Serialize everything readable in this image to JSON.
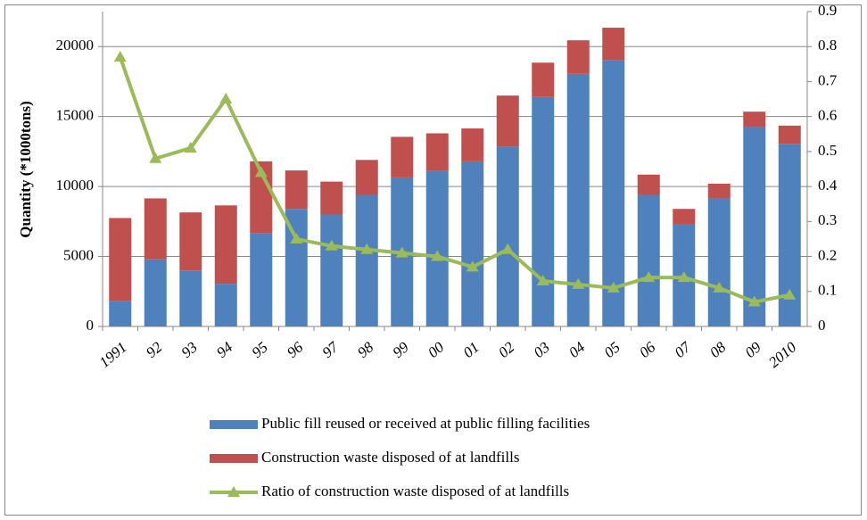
{
  "chart_data": {
    "type": "bar",
    "stacked": true,
    "categories": [
      "1991",
      "92",
      "93",
      "94",
      "95",
      "96",
      "97",
      "98",
      "99",
      "00",
      "01",
      "02",
      "03",
      "04",
      "05",
      "06",
      "07",
      "08",
      "09",
      "2010"
    ],
    "y_label": "Quantity (*1000tons)",
    "series": [
      {
        "name": "Public fill reused or received at public filling facilities",
        "color": "#4f81bd",
        "type": "bar",
        "values": [
          1800,
          4800,
          4000,
          3050,
          6650,
          8400,
          8000,
          9400,
          10650,
          11100,
          11800,
          12850,
          16400,
          18050,
          19050,
          9400,
          7300,
          9150,
          14250,
          13050
        ]
      },
      {
        "name": "Construction waste disposed of at landfills",
        "color": "#c0504d",
        "type": "bar",
        "values": [
          5950,
          4350,
          4150,
          5600,
          5150,
          2750,
          2350,
          2500,
          2900,
          2700,
          2350,
          3650,
          2450,
          2400,
          2300,
          1450,
          1100,
          1050,
          1100,
          1300
        ]
      },
      {
        "name": "Ratio of construction waste disposed of at landfills",
        "color": "#9bbb59",
        "type": "line",
        "axis": "y2",
        "values": [
          0.77,
          0.48,
          0.51,
          0.65,
          0.44,
          0.25,
          0.23,
          0.22,
          0.21,
          0.2,
          0.17,
          0.22,
          0.13,
          0.12,
          0.11,
          0.14,
          0.14,
          0.11,
          0.07,
          0.09
        ]
      }
    ],
    "ylim": [
      0,
      22500
    ],
    "yticks": [
      0,
      5000,
      10000,
      15000,
      20000
    ],
    "y2lim": [
      0,
      0.9
    ],
    "y2ticks": [
      0,
      0.1,
      0.2,
      0.3,
      0.4,
      0.5,
      0.6,
      0.7,
      0.8,
      0.9
    ],
    "grid": true,
    "legend": "bottom"
  }
}
